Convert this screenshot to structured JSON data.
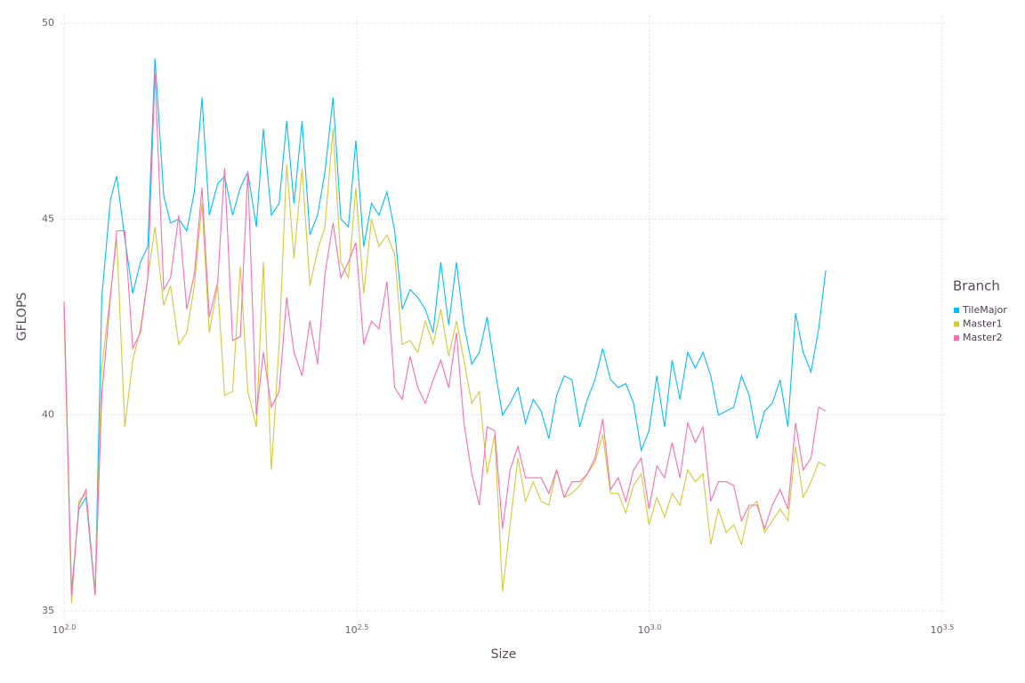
{
  "chart_data": {
    "type": "line",
    "x_label": "Size",
    "y_label": "GFLOPS",
    "legend_title": "Branch",
    "legend_position": "right",
    "x_scale": "log",
    "grid": true,
    "xlim": [
      100,
      3162.278
    ],
    "ylim": [
      35,
      50
    ],
    "xticks": [
      {
        "value": 100,
        "label": "10",
        "exponent": "2.0"
      },
      {
        "value": 316.2278,
        "label": "10",
        "exponent": "2.5"
      },
      {
        "value": 1000,
        "label": "10",
        "exponent": "3.0"
      },
      {
        "value": 3162.278,
        "label": "10",
        "exponent": "3.5"
      }
    ],
    "yticks": [
      35,
      40,
      45,
      50
    ],
    "x": [
      100,
      103,
      106,
      109,
      113,
      116,
      120,
      123,
      127,
      131,
      135,
      139,
      143,
      148,
      152,
      157,
      162,
      167,
      172,
      177,
      183,
      188,
      194,
      200,
      206,
      213,
      219,
      226,
      233,
      240,
      247,
      255,
      263,
      271,
      279,
      288,
      297,
      306,
      315,
      325,
      335,
      345,
      356,
      367,
      378,
      390,
      402,
      414,
      427,
      440,
      454,
      468,
      482,
      497,
      512,
      528,
      544,
      561,
      578,
      596,
      614,
      633,
      653,
      673,
      694,
      715,
      737,
      760,
      783,
      807,
      832,
      858,
      884,
      911,
      939,
      968,
      998,
      1029,
      1061,
      1093,
      1127,
      1162,
      1197,
      1234,
      1272,
      1311,
      1352,
      1393,
      1436,
      1480,
      1526,
      1573,
      1621,
      1671,
      1723,
      1776,
      1830,
      1887,
      1945,
      2000
    ],
    "series": [
      {
        "name": "TileMajor",
        "color": "#00bfff",
        "values": [
          42.8,
          35.5,
          37.6,
          37.9,
          35.4,
          43.0,
          45.5,
          46.1,
          44.5,
          43.1,
          43.9,
          44.3,
          49.1,
          45.6,
          44.9,
          45.0,
          44.7,
          45.7,
          48.1,
          45.1,
          45.9,
          46.1,
          45.1,
          45.8,
          46.2,
          44.8,
          47.3,
          45.1,
          45.4,
          47.5,
          45.4,
          47.5,
          44.6,
          45.1,
          46.2,
          48.1,
          45.0,
          44.8,
          47.0,
          44.3,
          45.4,
          45.1,
          45.7,
          44.7,
          42.7,
          43.2,
          43.0,
          42.7,
          42.1,
          43.9,
          42.3,
          43.9,
          42.3,
          41.3,
          41.6,
          42.5,
          41.2,
          40.0,
          40.3,
          40.7,
          39.8,
          40.4,
          40.1,
          39.4,
          40.5,
          41.0,
          40.9,
          39.7,
          40.4,
          40.9,
          41.7,
          40.9,
          40.7,
          40.8,
          40.3,
          39.1,
          39.6,
          41.0,
          39.7,
          41.4,
          40.4,
          41.6,
          41.2,
          41.6,
          41.0,
          40.0,
          40.1,
          40.2,
          41.0,
          40.5,
          39.4,
          40.1,
          40.3,
          40.9,
          39.7,
          42.6,
          41.6,
          41.1,
          42.2,
          43.7
        ]
      },
      {
        "name": "Master1",
        "color": "#d4ca3a",
        "values": [
          42.6,
          35.2,
          37.8,
          38.0,
          35.5,
          41.2,
          43.1,
          44.5,
          39.7,
          41.4,
          42.2,
          43.5,
          44.8,
          42.8,
          43.3,
          41.8,
          42.1,
          43.3,
          45.4,
          42.1,
          43.3,
          40.5,
          40.6,
          43.8,
          40.6,
          39.7,
          43.9,
          38.6,
          41.8,
          46.4,
          44.0,
          46.3,
          43.3,
          44.2,
          44.8,
          47.3,
          43.9,
          43.5,
          45.8,
          43.1,
          45.0,
          44.3,
          44.6,
          44.1,
          41.8,
          41.9,
          41.6,
          42.4,
          41.8,
          42.7,
          41.5,
          42.4,
          41.4,
          40.3,
          40.6,
          38.5,
          39.5,
          35.5,
          37.2,
          38.9,
          37.8,
          38.3,
          37.8,
          37.7,
          38.6,
          37.9,
          38.0,
          38.2,
          38.5,
          38.8,
          39.5,
          38.0,
          38.0,
          37.5,
          38.2,
          38.5,
          37.2,
          37.9,
          37.4,
          38.0,
          37.7,
          38.6,
          38.3,
          38.5,
          36.7,
          37.6,
          37.0,
          37.2,
          36.7,
          37.6,
          37.8,
          37.0,
          37.3,
          37.6,
          37.3,
          39.2,
          37.9,
          38.3,
          38.8,
          38.7
        ]
      },
      {
        "name": "Master2",
        "color": "#ff6dae",
        "values": [
          42.9,
          35.4,
          37.7,
          38.1,
          35.4,
          40.5,
          43.0,
          44.7,
          44.7,
          41.7,
          42.1,
          43.5,
          48.7,
          43.2,
          43.5,
          45.1,
          42.7,
          43.6,
          45.8,
          42.5,
          43.4,
          46.3,
          41.9,
          42.0,
          46.2,
          40.0,
          41.6,
          40.2,
          40.6,
          43.0,
          41.6,
          41.0,
          42.4,
          41.3,
          43.6,
          44.9,
          43.5,
          43.9,
          44.4,
          41.8,
          42.4,
          42.2,
          43.4,
          40.7,
          40.4,
          41.5,
          40.7,
          40.3,
          40.9,
          41.4,
          40.7,
          42.1,
          39.8,
          38.5,
          37.7,
          39.7,
          39.6,
          37.1,
          38.6,
          39.2,
          38.4,
          38.4,
          38.4,
          38.0,
          38.6,
          37.9,
          38.3,
          38.3,
          38.5,
          38.9,
          39.9,
          38.1,
          38.4,
          37.8,
          38.6,
          38.9,
          37.6,
          38.7,
          38.4,
          39.3,
          38.4,
          39.8,
          39.3,
          39.7,
          37.8,
          38.3,
          38.3,
          38.2,
          37.3,
          37.7,
          37.7,
          37.1,
          37.7,
          38.1,
          37.6,
          39.8,
          38.6,
          38.9,
          40.2,
          40.1
        ]
      }
    ]
  }
}
